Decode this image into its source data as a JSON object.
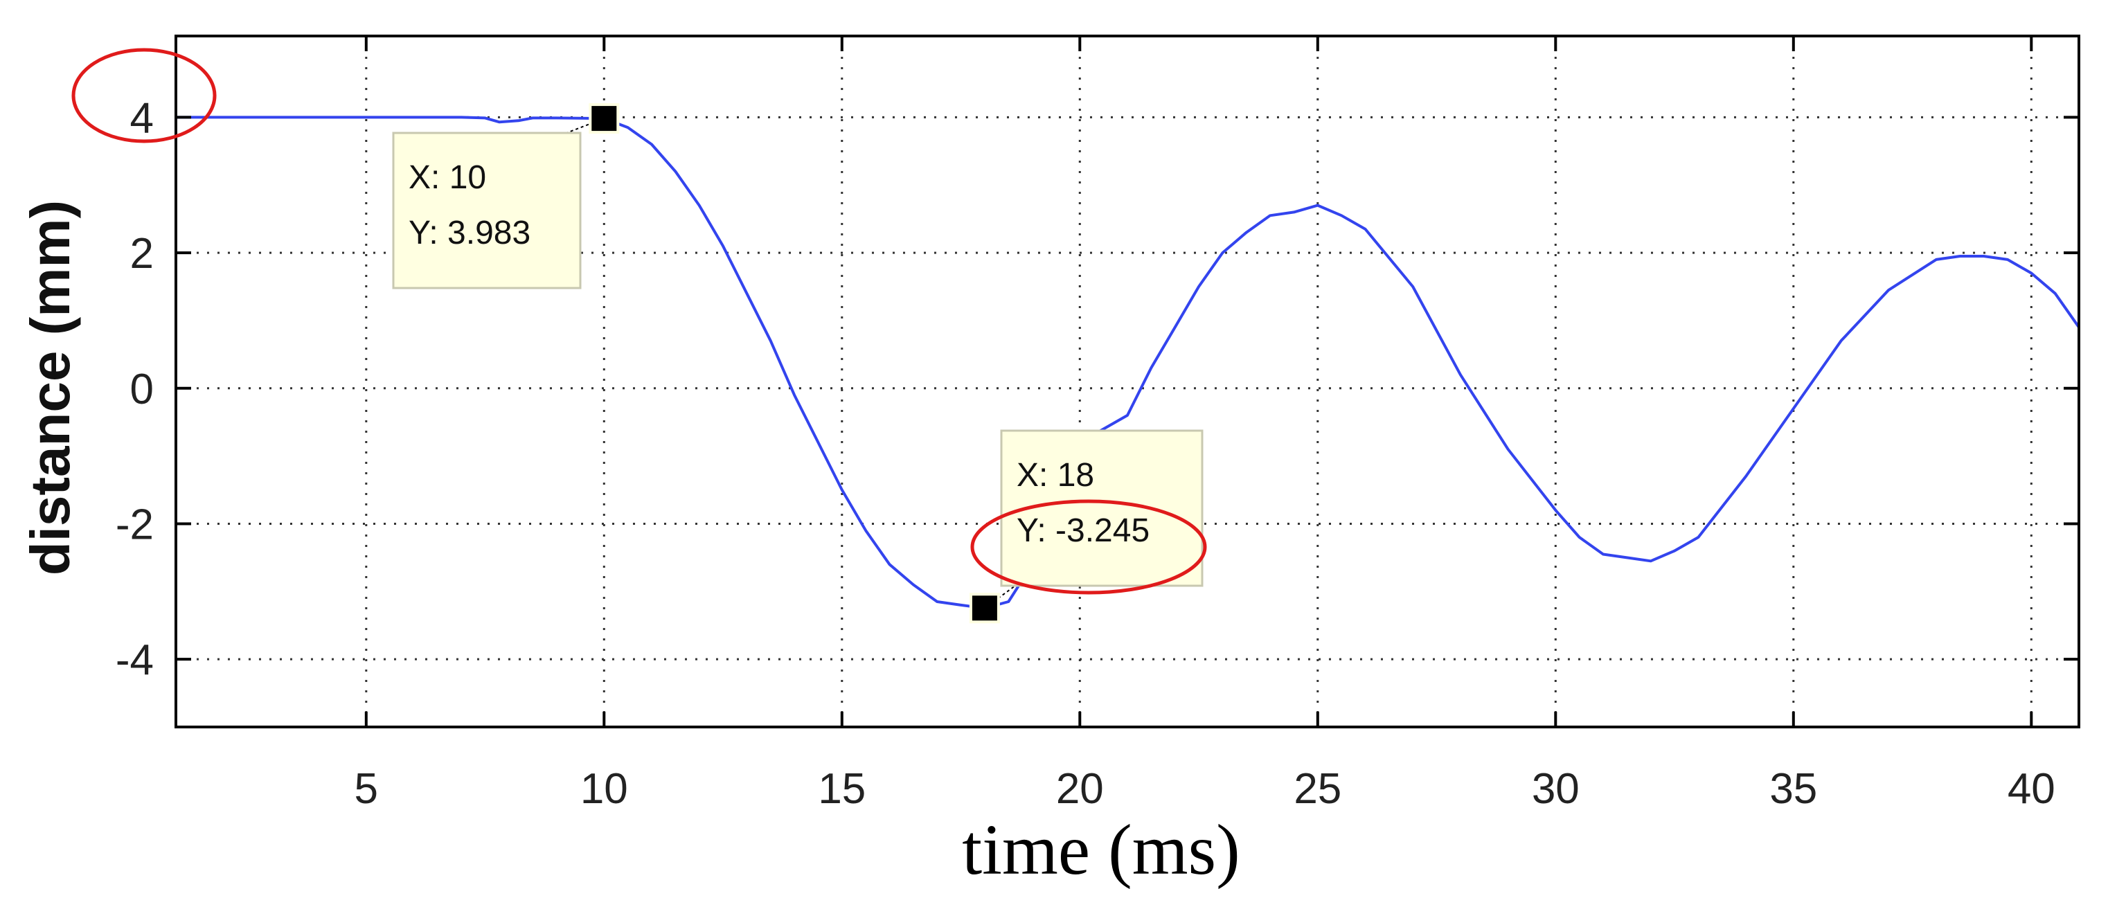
{
  "chart_data": {
    "type": "line",
    "title": "",
    "xlabel": "time (ms)",
    "ylabel": "distance (mm)",
    "xlim": [
      1,
      41
    ],
    "ylim": [
      -5,
      5.2
    ],
    "x_ticks": [
      5,
      10,
      15,
      20,
      25,
      30,
      35,
      40
    ],
    "y_ticks": [
      4,
      2,
      0,
      -2,
      -4
    ],
    "grid": true,
    "legend": "none",
    "line_color": "#3344ee",
    "annotation_color": "#e01b1b",
    "series": [
      {
        "x": [
          1,
          2,
          3,
          4,
          5,
          6,
          7,
          7.5,
          7.8,
          8.2,
          8.5,
          9,
          10,
          10.5,
          11,
          11.5,
          12,
          12.5,
          13,
          13.5,
          14,
          14.5,
          15,
          15.5,
          16,
          16.5,
          17,
          17.5,
          18,
          18.5,
          19,
          19.5,
          20,
          20.5,
          21,
          21.5,
          22,
          22.5,
          23,
          23.5,
          24,
          24.5,
          25,
          25.5,
          26,
          27,
          28,
          29,
          30,
          30.5,
          31,
          31.5,
          32,
          32.5,
          33,
          34,
          35,
          36,
          37,
          38,
          38.5,
          39,
          39.5,
          40,
          40.5,
          41
        ],
        "y": [
          4.0,
          4.0,
          4.0,
          4.0,
          4.0,
          4.0,
          4.0,
          3.99,
          3.93,
          3.95,
          3.99,
          3.99,
          3.983,
          3.85,
          3.6,
          3.2,
          2.7,
          2.1,
          1.4,
          0.7,
          -0.1,
          -0.8,
          -1.5,
          -2.1,
          -2.6,
          -2.9,
          -3.15,
          -3.2,
          -3.245,
          -3.15,
          -2.6,
          -1.7,
          -0.8,
          -0.6,
          -0.4,
          0.3,
          0.9,
          1.5,
          2.0,
          2.3,
          2.55,
          2.6,
          2.7,
          2.55,
          2.35,
          1.5,
          0.2,
          -0.9,
          -1.8,
          -2.2,
          -2.45,
          -2.5,
          -2.55,
          -2.4,
          -2.2,
          -1.3,
          -0.3,
          0.7,
          1.45,
          1.9,
          1.95,
          1.95,
          1.9,
          1.7,
          1.4,
          0.9
        ]
      }
    ],
    "data_tips": [
      {
        "x": 10,
        "y": 3.983,
        "label_x": "X: 10",
        "label_y": "Y: 3.983"
      },
      {
        "x": 18,
        "y": -3.245,
        "label_x": "X: 18",
        "label_y": "Y: -3.245"
      }
    ],
    "labels": {
      "x_ticks": [
        "5",
        "10",
        "15",
        "20",
        "25",
        "30",
        "35",
        "40"
      ],
      "y_ticks": [
        "4",
        "2",
        "0",
        "-2",
        "-4"
      ]
    }
  }
}
